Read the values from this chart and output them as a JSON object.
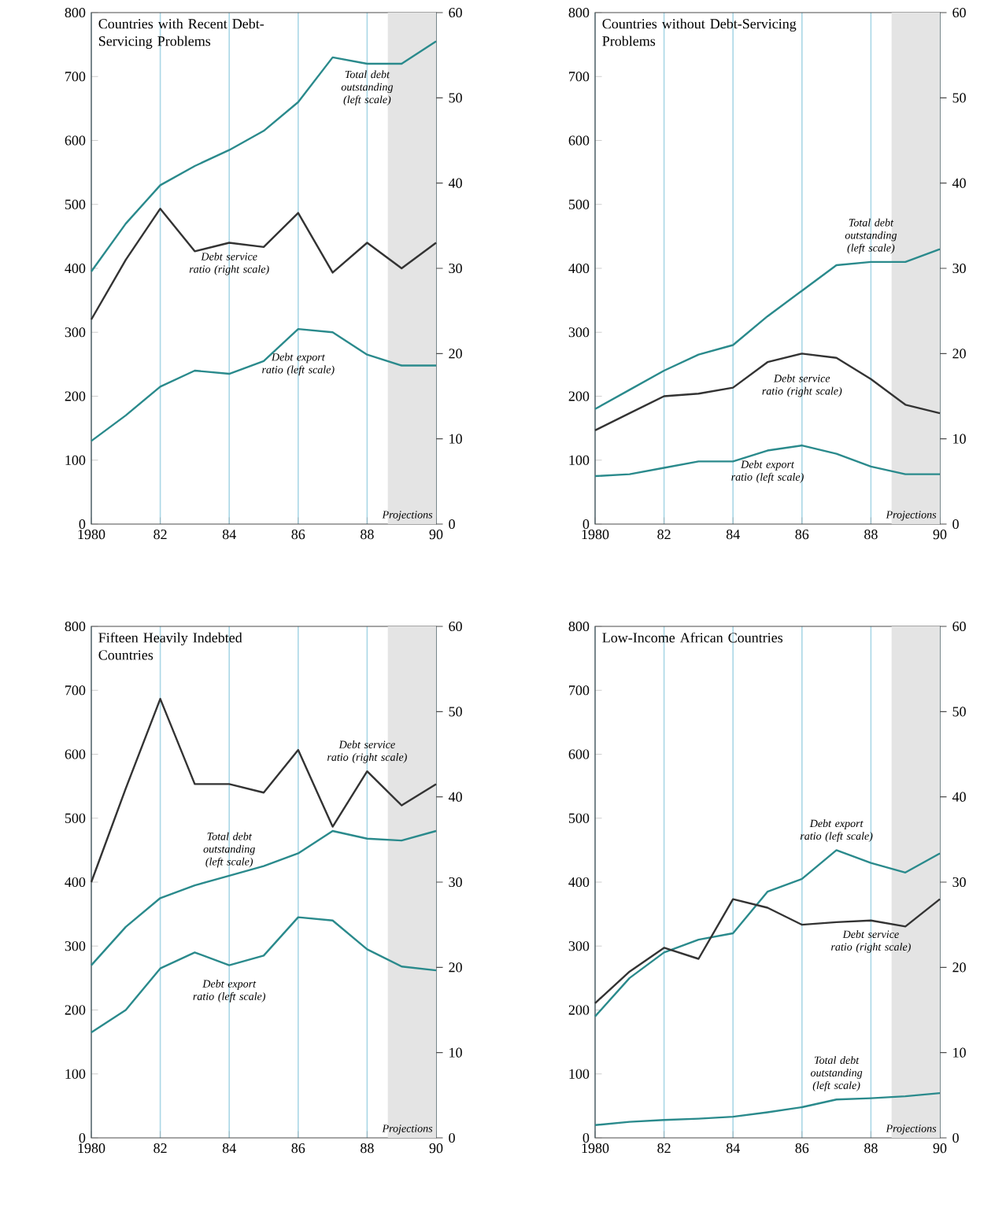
{
  "chart_data": [
    {
      "type": "line",
      "title": "Countries with Recent Debt-Servicing Problems",
      "x": [
        1980,
        1981,
        1982,
        1983,
        1984,
        1985,
        1986,
        1987,
        1988,
        1989,
        1990
      ],
      "series": [
        {
          "name": "Total debt outstanding (left scale)",
          "color": "#2a8a8c",
          "values": [
            395,
            470,
            530,
            560,
            585,
            615,
            660,
            730,
            720,
            720,
            755
          ]
        },
        {
          "name": "Debt service ratio (right scale)",
          "color": "#333333",
          "axis": "y2",
          "values": [
            24,
            31,
            37,
            32,
            33,
            32.5,
            36.5,
            29.5,
            33,
            30,
            33
          ]
        },
        {
          "name": "Debt export ratio (left scale)",
          "color": "#2a8a8c",
          "values": [
            130,
            170,
            215,
            240,
            235,
            255,
            305,
            300,
            265,
            248,
            248
          ]
        }
      ],
      "bands": [
        {
          "axis": "x",
          "from": 1988.6,
          "to": 1990,
          "label": "Projections",
          "color": "#e4e4e4"
        }
      ],
      "xlim": [
        1980,
        1990
      ],
      "xticks": [
        1980,
        {
          "value": 1982,
          "label": "82"
        },
        {
          "value": 1984,
          "label": "84"
        },
        {
          "value": 1986,
          "label": "86"
        },
        {
          "value": 1988,
          "label": "88"
        },
        {
          "value": 1990,
          "label": "90"
        }
      ],
      "ylim": [
        0,
        800
      ],
      "yticks": [
        0,
        100,
        200,
        300,
        400,
        500,
        600,
        700,
        800
      ],
      "y2lim": [
        0,
        60
      ],
      "y2ticks": [
        0,
        10,
        20,
        30,
        40,
        50,
        60
      ],
      "grid": "x"
    },
    {
      "type": "line",
      "title": "Countries without Debt-Servicing Problems",
      "x": [
        1980,
        1981,
        1982,
        1983,
        1984,
        1985,
        1986,
        1987,
        1988,
        1989,
        1990
      ],
      "series": [
        {
          "name": "Total debt outstanding (left scale)",
          "color": "#2a8a8c",
          "values": [
            180,
            210,
            240,
            265,
            280,
            325,
            365,
            405,
            410,
            410,
            430
          ]
        },
        {
          "name": "Debt service ratio (right scale)",
          "color": "#333333",
          "axis": "y2",
          "values": [
            11,
            13,
            15,
            15.3,
            16,
            19,
            20,
            19.5,
            17,
            14,
            13
          ]
        },
        {
          "name": "Debt export ratio (left scale)",
          "color": "#2a8a8c",
          "values": [
            75,
            78,
            88,
            98,
            98,
            115,
            123,
            110,
            90,
            78,
            78
          ]
        }
      ],
      "bands": [
        {
          "axis": "x",
          "from": 1988.6,
          "to": 1990,
          "label": "Projections",
          "color": "#e4e4e4"
        }
      ],
      "xlim": [
        1980,
        1990
      ],
      "xticks": [
        1980,
        {
          "value": 1982,
          "label": "82"
        },
        {
          "value": 1984,
          "label": "84"
        },
        {
          "value": 1986,
          "label": "86"
        },
        {
          "value": 1988,
          "label": "88"
        },
        {
          "value": 1990,
          "label": "90"
        }
      ],
      "ylim": [
        0,
        800
      ],
      "yticks": [
        0,
        100,
        200,
        300,
        400,
        500,
        600,
        700,
        800
      ],
      "y2lim": [
        0,
        60
      ],
      "y2ticks": [
        0,
        10,
        20,
        30,
        40,
        50,
        60
      ],
      "grid": "x"
    },
    {
      "type": "line",
      "title": "Fifteen Heavily Indebted Countries",
      "x": [
        1980,
        1981,
        1982,
        1983,
        1984,
        1985,
        1986,
        1987,
        1988,
        1989,
        1990
      ],
      "series": [
        {
          "name": "Debt service ratio (right scale)",
          "color": "#333333",
          "axis": "y2",
          "values": [
            30,
            41,
            51.5,
            41.5,
            41.5,
            40.5,
            45.5,
            36.5,
            43,
            39,
            41.5
          ]
        },
        {
          "name": "Debt export ratio (left scale)",
          "color": "#2a8a8c",
          "values": [
            165,
            200,
            265,
            290,
            270,
            285,
            345,
            340,
            295,
            268,
            262
          ]
        },
        {
          "name": "Total debt outstanding (left scale)",
          "color": "#2a8a8c",
          "values": [
            270,
            330,
            375,
            395,
            410,
            425,
            445,
            480,
            468,
            465,
            480
          ]
        }
      ],
      "bands": [
        {
          "axis": "x",
          "from": 1988.6,
          "to": 1990,
          "label": "Projections",
          "color": "#e4e4e4"
        }
      ],
      "xlim": [
        1980,
        1990
      ],
      "xticks": [
        1980,
        {
          "value": 1982,
          "label": "82"
        },
        {
          "value": 1984,
          "label": "84"
        },
        {
          "value": 1986,
          "label": "86"
        },
        {
          "value": 1988,
          "label": "88"
        },
        {
          "value": 1990,
          "label": "90"
        }
      ],
      "ylim": [
        0,
        800
      ],
      "yticks": [
        0,
        100,
        200,
        300,
        400,
        500,
        600,
        700,
        800
      ],
      "y2lim": [
        0,
        60
      ],
      "y2ticks": [
        0,
        10,
        20,
        30,
        40,
        50,
        60
      ],
      "grid": "x"
    },
    {
      "type": "line",
      "title": "Low-Income African Countries",
      "x": [
        1980,
        1981,
        1982,
        1983,
        1984,
        1985,
        1986,
        1987,
        1988,
        1989,
        1990
      ],
      "series": [
        {
          "name": "Debt export ratio (left scale)",
          "color": "#2a8a8c",
          "values": [
            190,
            250,
            290,
            310,
            320,
            385,
            405,
            450,
            430,
            415,
            445
          ]
        },
        {
          "name": "Debt service ratio (right scale)",
          "color": "#333333",
          "axis": "y2",
          "values": [
            15.8,
            19.5,
            22.3,
            21,
            28,
            27,
            25,
            25.3,
            25.5,
            24.8,
            28
          ]
        },
        {
          "name": "Total debt outstanding (left scale)",
          "color": "#2a8a8c",
          "values": [
            20,
            25,
            28,
            30,
            33,
            40,
            48,
            60,
            62,
            65,
            70
          ]
        }
      ],
      "bands": [
        {
          "axis": "x",
          "from": 1988.6,
          "to": 1990,
          "label": "Projections",
          "color": "#e4e4e4"
        }
      ],
      "xlim": [
        1980,
        1990
      ],
      "xticks": [
        1980,
        {
          "value": 1982,
          "label": "82"
        },
        {
          "value": 1984,
          "label": "84"
        },
        {
          "value": 1986,
          "label": "86"
        },
        {
          "value": 1988,
          "label": "88"
        },
        {
          "value": 1990,
          "label": "90"
        }
      ],
      "ylim": [
        0,
        800
      ],
      "yticks": [
        0,
        100,
        200,
        300,
        400,
        500,
        600,
        700,
        800
      ],
      "y2lim": [
        0,
        60
      ],
      "y2ticks": [
        0,
        10,
        20,
        30,
        40,
        50,
        60
      ],
      "grid": "x"
    }
  ]
}
